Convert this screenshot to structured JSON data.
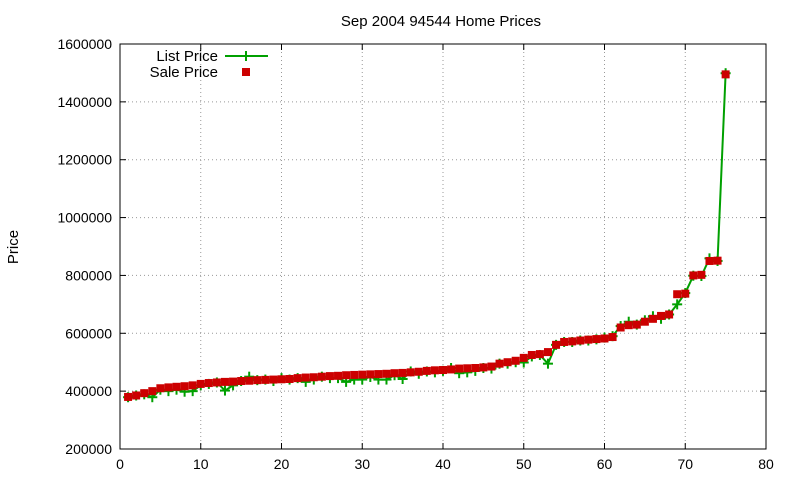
{
  "chart_data": {
    "type": "line",
    "title": "Sep 2004 94544 Home Prices",
    "xlabel": "",
    "ylabel": "Price",
    "xlim": [
      0,
      80
    ],
    "ylim": [
      200000,
      1600000
    ],
    "x_ticks": [
      0,
      10,
      20,
      30,
      40,
      50,
      60,
      70,
      80
    ],
    "y_ticks": [
      200000,
      400000,
      600000,
      800000,
      1000000,
      1200000,
      1400000,
      1600000
    ],
    "grid": true,
    "legend_position": "top-left",
    "series": [
      {
        "name": "List Price",
        "style": "line-with-plus-markers",
        "color": "#00a000",
        "x": [
          1,
          2,
          3,
          4,
          5,
          6,
          7,
          8,
          9,
          10,
          11,
          12,
          13,
          14,
          15,
          16,
          17,
          18,
          19,
          20,
          21,
          22,
          23,
          24,
          25,
          26,
          27,
          28,
          29,
          30,
          31,
          32,
          33,
          34,
          35,
          36,
          37,
          38,
          39,
          40,
          41,
          42,
          43,
          44,
          45,
          46,
          47,
          48,
          49,
          50,
          51,
          52,
          53,
          54,
          55,
          56,
          57,
          58,
          59,
          60,
          61,
          62,
          63,
          64,
          65,
          66,
          67,
          68,
          69,
          70,
          71,
          72,
          73,
          74,
          75
        ],
        "values": [
          379000,
          385000,
          389000,
          379000,
          405000,
          400000,
          405000,
          398000,
          400000,
          420000,
          425000,
          430000,
          402000,
          420000,
          435000,
          450000,
          438000,
          440000,
          435000,
          445000,
          440000,
          445000,
          432000,
          440000,
          450000,
          445000,
          445000,
          432000,
          440000,
          440000,
          449000,
          440000,
          440000,
          455000,
          442000,
          468000,
          460000,
          468000,
          465000,
          470000,
          480000,
          462000,
          465000,
          470000,
          480000,
          478000,
          495000,
          495000,
          500000,
          499000,
          520000,
          525000,
          495000,
          560000,
          570000,
          570000,
          575000,
          575000,
          579000,
          585000,
          590000,
          625000,
          640000,
          630000,
          645000,
          659000,
          650000,
          665000,
          700000,
          739000,
          799000,
          798000,
          859000,
          850000,
          1499000
        ]
      },
      {
        "name": "Sale Price",
        "style": "square-markers",
        "color": "#cc0000",
        "x": [
          1,
          2,
          3,
          4,
          5,
          6,
          7,
          8,
          9,
          10,
          11,
          12,
          13,
          14,
          15,
          16,
          17,
          18,
          19,
          20,
          21,
          22,
          23,
          24,
          25,
          26,
          27,
          28,
          29,
          30,
          31,
          32,
          33,
          34,
          35,
          36,
          37,
          38,
          39,
          40,
          41,
          42,
          43,
          44,
          45,
          46,
          47,
          48,
          49,
          50,
          51,
          52,
          53,
          54,
          55,
          56,
          57,
          58,
          59,
          60,
          61,
          62,
          63,
          64,
          65,
          66,
          67,
          68,
          69,
          70,
          71,
          72,
          73,
          74,
          75
        ],
        "values": [
          380000,
          385000,
          393000,
          400000,
          410000,
          413000,
          415000,
          417000,
          420000,
          425000,
          428000,
          430000,
          432000,
          433000,
          435000,
          436000,
          438000,
          439000,
          440000,
          441000,
          442000,
          445000,
          447000,
          448000,
          450000,
          452000,
          453000,
          455000,
          456000,
          457000,
          458000,
          459000,
          460000,
          462000,
          463000,
          465000,
          467000,
          470000,
          472000,
          473000,
          475000,
          478000,
          479000,
          480000,
          482000,
          485000,
          495000,
          500000,
          505000,
          515000,
          525000,
          528000,
          535000,
          560000,
          570000,
          572000,
          575000,
          578000,
          580000,
          582000,
          587000,
          620000,
          628000,
          630000,
          640000,
          650000,
          660000,
          665000,
          735000,
          737000,
          800000,
          802000,
          850000,
          851000,
          1495000
        ]
      }
    ]
  }
}
